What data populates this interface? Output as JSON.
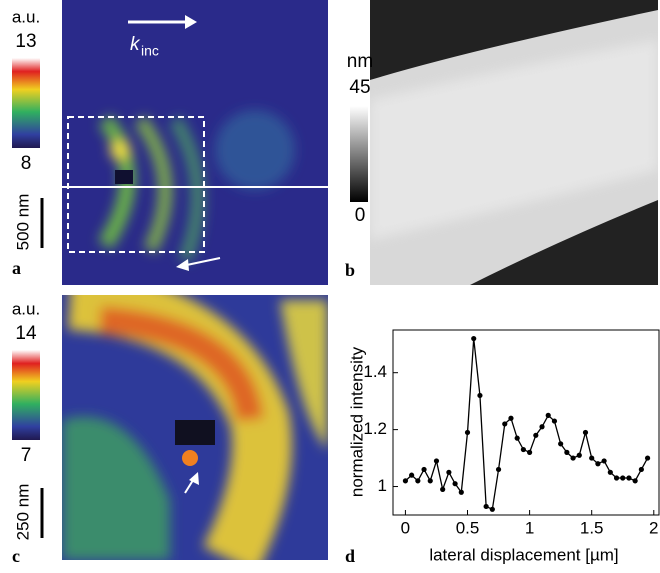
{
  "panels": {
    "a": {
      "letter": "a",
      "colorbar_unit": "a.u.",
      "colorbar_ticks": [
        13,
        8
      ],
      "scale_bar": "500 nm",
      "wavevector_symbol": "k",
      "wavevector_subscript": "inc"
    },
    "b": {
      "letter": "b",
      "colorbar_unit": "nm",
      "colorbar_ticks": [
        45,
        0
      ]
    },
    "c": {
      "letter": "c",
      "colorbar_unit": "a.u.",
      "colorbar_ticks": [
        14,
        7
      ],
      "scale_bar": "250 nm"
    },
    "d": {
      "letter": "d"
    }
  },
  "chart_data": {
    "type": "line",
    "xlabel": "lateral displacement [µm]",
    "ylabel": "normalized intensity",
    "x": [
      0,
      0.05,
      0.1,
      0.15,
      0.2,
      0.25,
      0.3,
      0.35,
      0.4,
      0.45,
      0.5,
      0.55,
      0.6,
      0.65,
      0.7,
      0.75,
      0.8,
      0.85,
      0.9,
      0.95,
      1,
      1.05,
      1.1,
      1.15,
      1.2,
      1.25,
      1.3,
      1.35,
      1.4,
      1.45,
      1.5,
      1.55,
      1.6,
      1.65,
      1.7,
      1.75,
      1.8,
      1.85,
      1.9,
      1.95
    ],
    "values": [
      1.02,
      1.04,
      1.02,
      1.06,
      1.02,
      1.09,
      0.99,
      1.05,
      1.01,
      0.98,
      1.19,
      1.52,
      1.32,
      0.93,
      0.92,
      1.06,
      1.22,
      1.24,
      1.17,
      1.13,
      1.12,
      1.18,
      1.21,
      1.25,
      1.23,
      1.15,
      1.12,
      1.1,
      1.11,
      1.19,
      1.1,
      1.08,
      1.09,
      1.05,
      1.03,
      1.03,
      1.03,
      1.02,
      1.06,
      1.1
    ],
    "color": "#000000",
    "xlim": [
      -0.1,
      2.05
    ],
    "ylim": [
      0.9,
      1.55
    ],
    "xticks": [
      0,
      0.5,
      1,
      1.5,
      2
    ],
    "yticks": [
      1,
      1.2,
      1.4
    ]
  }
}
